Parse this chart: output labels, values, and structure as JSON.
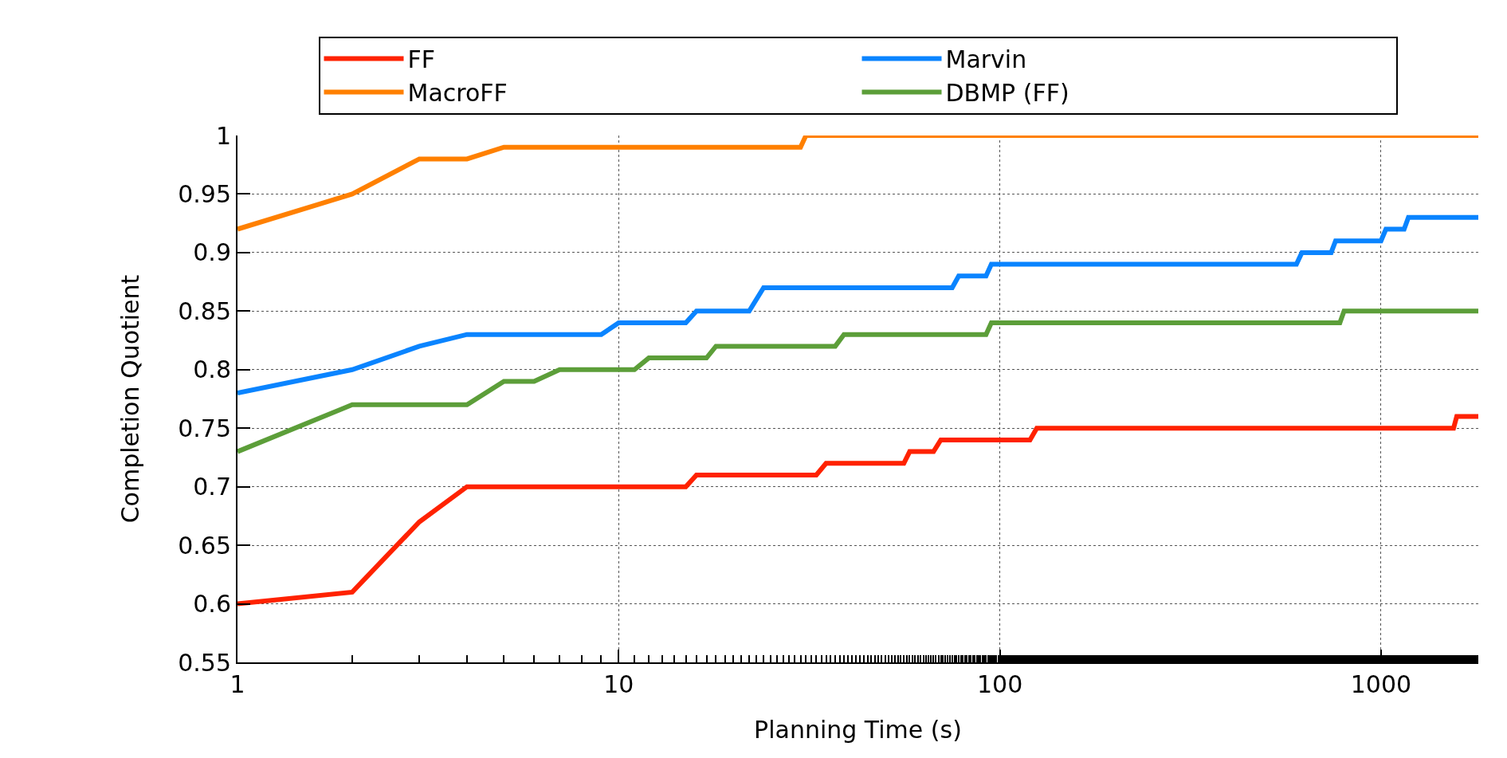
{
  "chart_data": {
    "type": "line",
    "xlabel": "Planning Time (s)",
    "ylabel": "Completion Quotient",
    "log": "x",
    "xlim": [
      1,
      1800
    ],
    "xticks": [
      1,
      10,
      100,
      1000
    ],
    "ylim": [
      0.55,
      1
    ],
    "yticks": [
      0.55,
      0.6,
      0.65,
      0.7,
      0.75,
      0.8,
      0.85,
      0.9,
      0.95,
      1
    ],
    "grid": true,
    "legend": "top",
    "marker": "none",
    "line_style": "solid",
    "series": [
      {
        "name": "FF",
        "color": "#ff2200",
        "x": [
          1,
          2,
          3,
          4,
          15,
          16,
          33,
          35,
          56,
          58,
          67,
          70,
          120,
          125,
          1550,
          1580,
          1800
        ],
        "values": [
          0.6,
          0.61,
          0.67,
          0.7,
          0.7,
          0.71,
          0.71,
          0.72,
          0.72,
          0.73,
          0.73,
          0.74,
          0.74,
          0.75,
          0.75,
          0.76,
          0.76
        ]
      },
      {
        "name": "Marvin",
        "color": "#0a84ff",
        "x": [
          1,
          2,
          3,
          4,
          9,
          10,
          15,
          16,
          22,
          24,
          75,
          78,
          92,
          95,
          600,
          620,
          740,
          760,
          1000,
          1030,
          1150,
          1180,
          1800
        ],
        "values": [
          0.78,
          0.8,
          0.82,
          0.83,
          0.83,
          0.84,
          0.84,
          0.85,
          0.85,
          0.87,
          0.87,
          0.88,
          0.88,
          0.89,
          0.89,
          0.9,
          0.9,
          0.91,
          0.91,
          0.92,
          0.92,
          0.93,
          0.93
        ]
      },
      {
        "name": "MacroFF",
        "color": "#ff8000",
        "x": [
          1,
          2,
          3,
          4,
          5,
          30,
          31,
          1800
        ],
        "values": [
          0.92,
          0.95,
          0.98,
          0.98,
          0.99,
          0.99,
          1.0,
          1.0
        ]
      },
      {
        "name": "DBMP (FF)",
        "color": "#5c9e39",
        "x": [
          1,
          2,
          4,
          5,
          6,
          7,
          11,
          12,
          17,
          18,
          37,
          39,
          92,
          95,
          780,
          800,
          1800
        ],
        "values": [
          0.73,
          0.77,
          0.77,
          0.79,
          0.79,
          0.8,
          0.8,
          0.81,
          0.81,
          0.82,
          0.82,
          0.83,
          0.83,
          0.84,
          0.84,
          0.85,
          0.85
        ]
      }
    ]
  }
}
